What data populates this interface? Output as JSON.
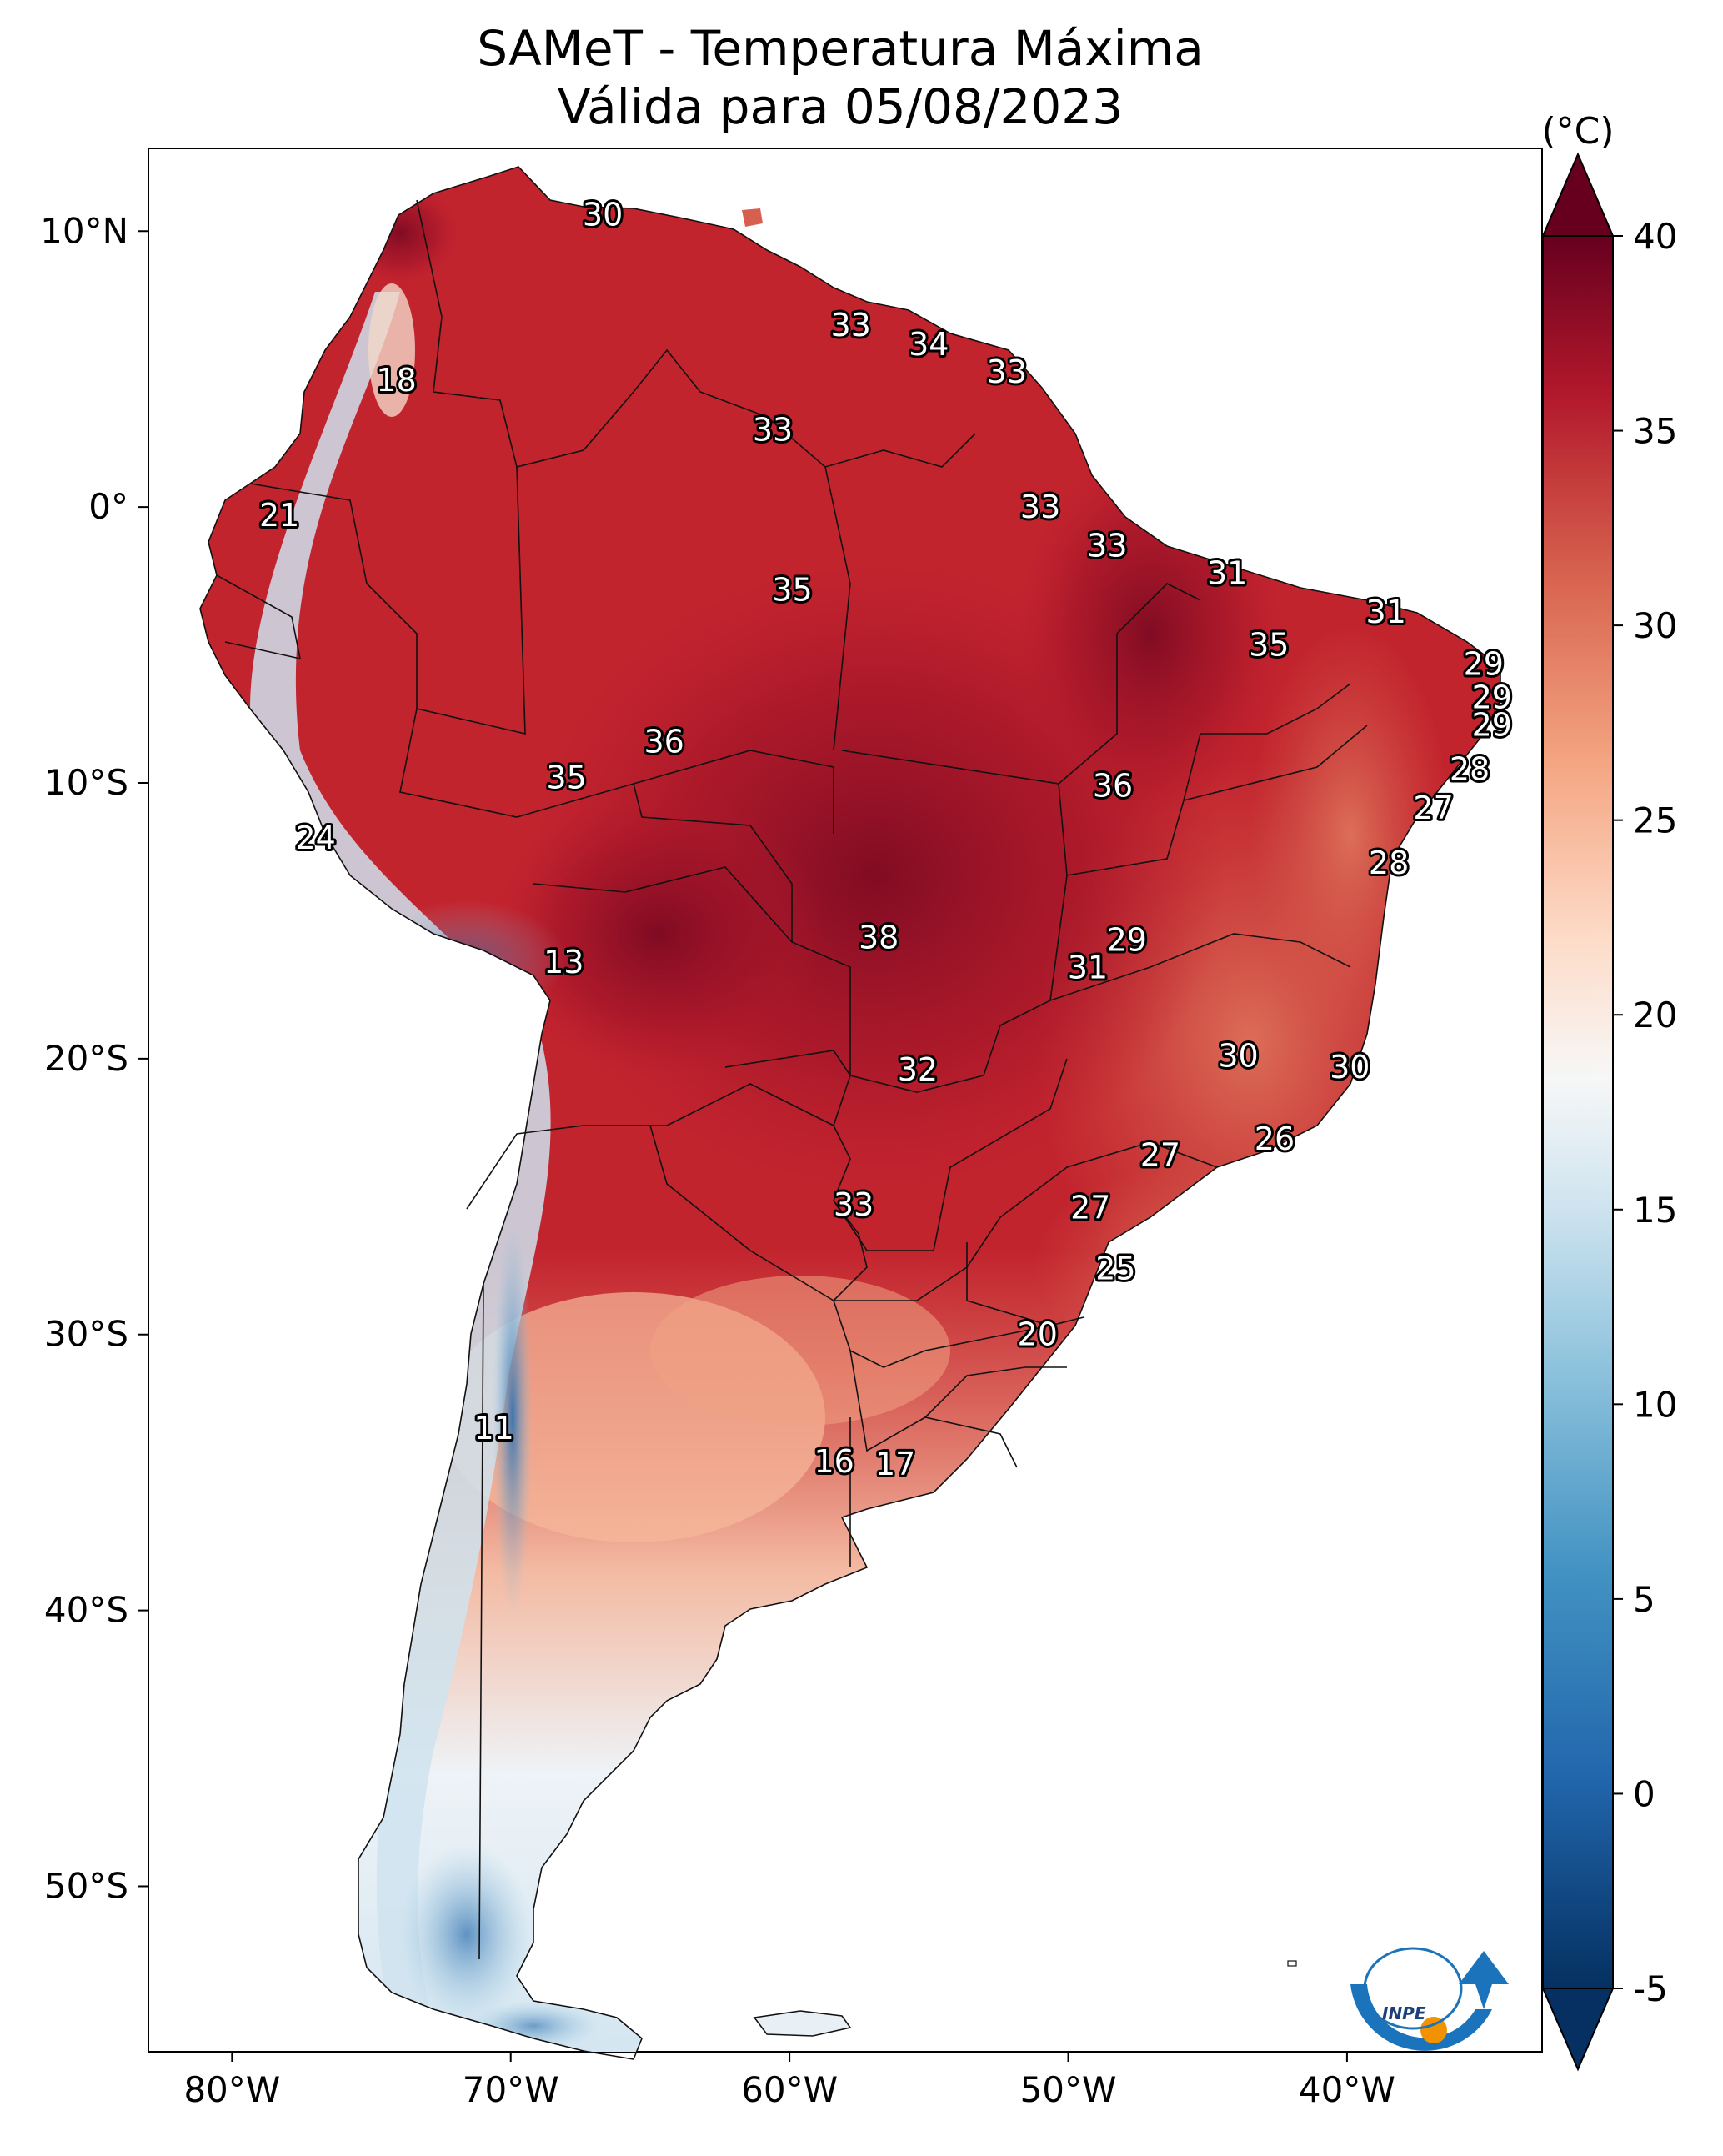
{
  "title_line1": "SAMeT - Temperatura Máxima",
  "title_line2": "Válida para 05/08/2023",
  "logo_text": "INPE",
  "map": {
    "lon_range": [
      -83,
      -33
    ],
    "lat_range": [
      -56,
      13
    ],
    "lon_ticks": [
      {
        "value": -80,
        "label": "80°W"
      },
      {
        "value": -70,
        "label": "70°W"
      },
      {
        "value": -60,
        "label": "60°W"
      },
      {
        "value": -50,
        "label": "50°W"
      },
      {
        "value": -40,
        "label": "40°W"
      }
    ],
    "lat_ticks": [
      {
        "value": 10,
        "label": "10°N"
      },
      {
        "value": 0,
        "label": "0°"
      },
      {
        "value": -10,
        "label": "10°S"
      },
      {
        "value": -20,
        "label": "20°S"
      },
      {
        "value": -30,
        "label": "30°S"
      },
      {
        "value": -40,
        "label": "40°S"
      },
      {
        "value": -50,
        "label": "50°S"
      }
    ],
    "labels": [
      {
        "text": "30",
        "lon": -66.7,
        "lat": 10.6
      },
      {
        "text": "33",
        "lon": -57.8,
        "lat": 6.6
      },
      {
        "text": "34",
        "lon": -55.0,
        "lat": 5.9
      },
      {
        "text": "33",
        "lon": -52.2,
        "lat": 4.9
      },
      {
        "text": "18",
        "lon": -74.1,
        "lat": 4.6
      },
      {
        "text": "33",
        "lon": -60.6,
        "lat": 2.8
      },
      {
        "text": "33",
        "lon": -51.0,
        "lat": 0.0
      },
      {
        "text": "21",
        "lon": -78.3,
        "lat": -0.3
      },
      {
        "text": "33",
        "lon": -48.6,
        "lat": -1.4
      },
      {
        "text": "31",
        "lon": -44.3,
        "lat": -2.4
      },
      {
        "text": "35",
        "lon": -59.9,
        "lat": -3.0
      },
      {
        "text": "31",
        "lon": -38.6,
        "lat": -3.8
      },
      {
        "text": "35",
        "lon": -42.8,
        "lat": -5.0
      },
      {
        "text": "29",
        "lon": -35.1,
        "lat": -5.7
      },
      {
        "text": "29",
        "lon": -34.8,
        "lat": -6.9
      },
      {
        "text": "29",
        "lon": -34.8,
        "lat": -7.9
      },
      {
        "text": "36",
        "lon": -64.5,
        "lat": -8.5
      },
      {
        "text": "28",
        "lon": -35.6,
        "lat": -9.5
      },
      {
        "text": "35",
        "lon": -68.0,
        "lat": -9.8
      },
      {
        "text": "36",
        "lon": -48.4,
        "lat": -10.1
      },
      {
        "text": "27",
        "lon": -36.9,
        "lat": -10.9
      },
      {
        "text": "24",
        "lon": -77.0,
        "lat": -12.0
      },
      {
        "text": "28",
        "lon": -38.5,
        "lat": -12.9
      },
      {
        "text": "38",
        "lon": -56.8,
        "lat": -15.6
      },
      {
        "text": "29",
        "lon": -47.9,
        "lat": -15.7
      },
      {
        "text": "13",
        "lon": -68.1,
        "lat": -16.5
      },
      {
        "text": "31",
        "lon": -49.3,
        "lat": -16.7
      },
      {
        "text": "30",
        "lon": -43.9,
        "lat": -19.9
      },
      {
        "text": "30",
        "lon": -39.9,
        "lat": -20.3
      },
      {
        "text": "32",
        "lon": -55.4,
        "lat": -20.4
      },
      {
        "text": "26",
        "lon": -42.6,
        "lat": -22.9
      },
      {
        "text": "27",
        "lon": -46.7,
        "lat": -23.5
      },
      {
        "text": "33",
        "lon": -57.7,
        "lat": -25.3
      },
      {
        "text": "27",
        "lon": -49.2,
        "lat": -25.4
      },
      {
        "text": "25",
        "lon": -48.3,
        "lat": -27.6
      },
      {
        "text": "20",
        "lon": -51.1,
        "lat": -30.0
      },
      {
        "text": "11",
        "lon": -70.6,
        "lat": -33.4
      },
      {
        "text": "16",
        "lon": -58.4,
        "lat": -34.6
      },
      {
        "text": "17",
        "lon": -56.2,
        "lat": -34.7
      }
    ]
  },
  "colorbar": {
    "unit": "(°C)",
    "min": -5,
    "max": 40,
    "ticks": [
      40,
      35,
      30,
      25,
      20,
      15,
      10,
      5,
      0,
      -5
    ],
    "tick_labels": [
      "40",
      "35",
      "30",
      "25",
      "20",
      "15",
      "10",
      "5",
      "0",
      "-5"
    ],
    "colors": [
      "#053061",
      "#2166ac",
      "#4393c3",
      "#92c5de",
      "#d1e5f0",
      "#f7f7f7",
      "#fddbc7",
      "#f4a582",
      "#d6604d",
      "#b2182b",
      "#67001f"
    ]
  }
}
